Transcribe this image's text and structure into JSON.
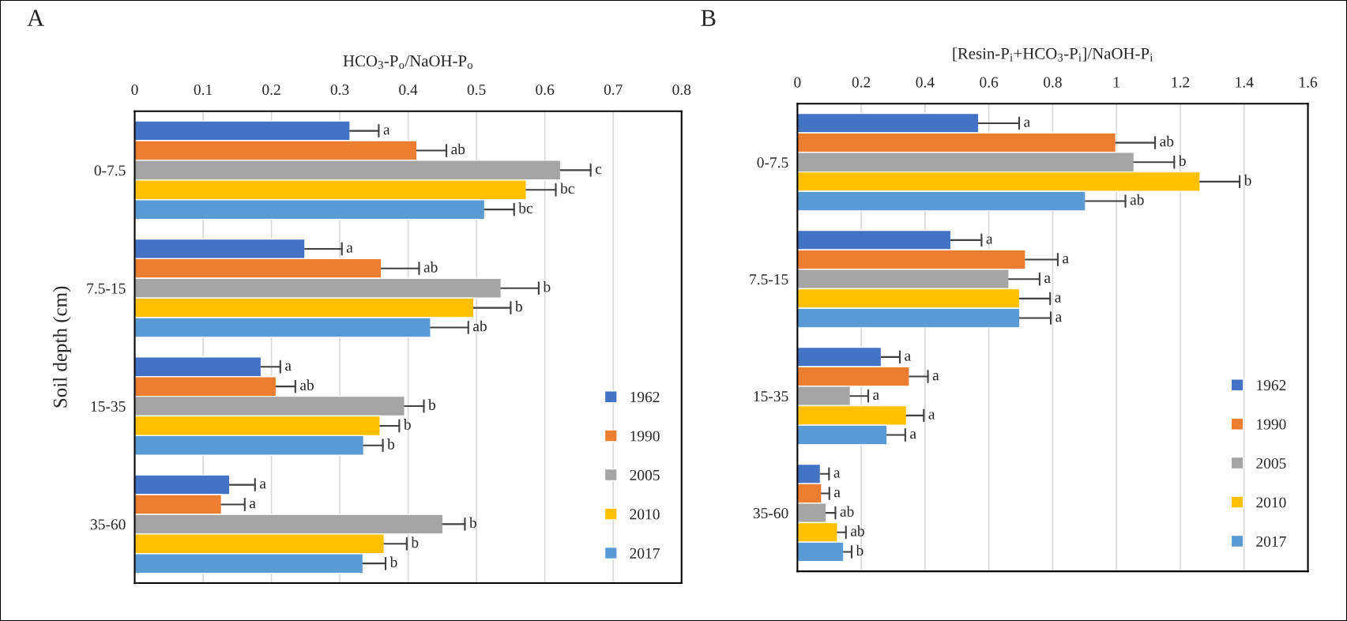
{
  "chart_data": [
    {
      "type": "bar",
      "orientation": "horizontal",
      "title": "A",
      "xlabel": "HCO$_{3}$-P$_{o}$/NaOH-P$_{o}$",
      "ylabel": "Soil depth (cm)",
      "categories": [
        "0-7.5",
        "7.5-15",
        "15-35",
        "35-60"
      ],
      "xlim": [
        0,
        0.8
      ],
      "xticks": [
        0,
        0.1,
        0.2,
        0.3,
        0.4,
        0.5,
        0.6,
        0.7,
        0.8
      ],
      "grid": "x",
      "legend": "bottom right",
      "series": [
        {
          "name": "1962",
          "color": "#4472c4",
          "values": [
            0.315,
            0.249,
            0.185,
            0.139
          ],
          "errors": [
            [
              0.315,
              0.357
            ],
            [
              0.249,
              0.303
            ],
            [
              0.185,
              0.213
            ],
            [
              0.139,
              0.176
            ]
          ],
          "value_labels": [
            "a",
            "a",
            "a",
            "a"
          ]
        },
        {
          "name": "1990",
          "color": "#ed7d31",
          "values": [
            0.413,
            0.361,
            0.207,
            0.127
          ],
          "errors": [
            [
              0.413,
              0.456
            ],
            [
              0.361,
              0.416
            ],
            [
              0.207,
              0.235
            ],
            [
              0.127,
              0.161
            ]
          ],
          "value_labels": [
            "ab",
            "ab",
            "ab",
            "a"
          ]
        },
        {
          "name": "2005",
          "color": "#a5a5a5",
          "values": [
            0.623,
            0.536,
            0.395,
            0.451
          ],
          "errors": [
            [
              0.623,
              0.667
            ],
            [
              0.536,
              0.591
            ],
            [
              0.395,
              0.423
            ],
            [
              0.451,
              0.483
            ]
          ],
          "value_labels": [
            "c",
            "b",
            "b",
            "b"
          ]
        },
        {
          "name": "2010",
          "color": "#ffc000",
          "values": [
            0.573,
            0.496,
            0.359,
            0.365
          ],
          "errors": [
            [
              0.573,
              0.616
            ],
            [
              0.496,
              0.55
            ],
            [
              0.359,
              0.387
            ],
            [
              0.365,
              0.398
            ]
          ],
          "value_labels": [
            "bc",
            "b",
            "b",
            "b"
          ]
        },
        {
          "name": "2017",
          "color": "#5b9bd5",
          "values": [
            0.512,
            0.433,
            0.335,
            0.334
          ],
          "errors": [
            [
              0.512,
              0.555
            ],
            [
              0.433,
              0.488
            ],
            [
              0.335,
              0.363
            ],
            [
              0.334,
              0.367
            ]
          ],
          "value_labels": [
            "bc",
            "ab",
            "b",
            "b"
          ]
        }
      ]
    },
    {
      "type": "bar",
      "orientation": "horizontal",
      "title": "B",
      "xlabel": "[Resin-P$_{i}$+HCO$_{3}$-P$_{i}$]/NaOH-P$_{i}$",
      "categories": [
        "0-7.5",
        "7.5-15",
        "15-35",
        "35-60"
      ],
      "xlim": [
        0,
        1.6
      ],
      "xticks": [
        0,
        0.2,
        0.4,
        0.6,
        0.8,
        1,
        1.2,
        1.4,
        1.6
      ],
      "grid": "x",
      "legend": "bottom right",
      "series": [
        {
          "name": "1962",
          "color": "#4472c4",
          "values": [
            0.568,
            0.481,
            0.263,
            0.072
          ],
          "errors": [
            [
              0.568,
              0.695
            ],
            [
              0.481,
              0.577
            ],
            [
              0.263,
              0.321
            ],
            [
              0.072,
              0.099
            ]
          ],
          "value_labels": [
            "a",
            "a",
            "a",
            "a"
          ]
        },
        {
          "name": "1990",
          "color": "#ed7d31",
          "values": [
            0.998,
            0.715,
            0.351,
            0.076
          ],
          "errors": [
            [
              0.998,
              1.121
            ],
            [
              0.715,
              0.816
            ],
            [
              0.351,
              0.409
            ],
            [
              0.076,
              0.1
            ]
          ],
          "value_labels": [
            "ab",
            "a",
            "a",
            "a"
          ]
        },
        {
          "name": "2005",
          "color": "#a5a5a5",
          "values": [
            1.055,
            0.663,
            0.166,
            0.09
          ],
          "errors": [
            [
              1.055,
              1.181
            ],
            [
              0.663,
              0.759
            ],
            [
              0.166,
              0.222
            ],
            [
              0.09,
              0.119
            ]
          ],
          "value_labels": [
            "b",
            "a",
            "a",
            "ab"
          ]
        },
        {
          "name": "2010",
          "color": "#ffc000",
          "values": [
            1.262,
            0.697,
            0.342,
            0.126
          ],
          "errors": [
            [
              1.262,
              1.386
            ],
            [
              0.697,
              0.792
            ],
            [
              0.342,
              0.396
            ],
            [
              0.126,
              0.152
            ]
          ],
          "value_labels": [
            "b",
            "a",
            "a",
            "ab"
          ]
        },
        {
          "name": "2017",
          "color": "#5b9bd5",
          "values": [
            0.903,
            0.697,
            0.281,
            0.145
          ],
          "errors": [
            [
              0.903,
              1.028
            ],
            [
              0.697,
              0.794
            ],
            [
              0.281,
              0.338
            ],
            [
              0.145,
              0.17
            ]
          ],
          "value_labels": [
            "ab",
            "a",
            "a",
            "b"
          ]
        }
      ]
    }
  ]
}
